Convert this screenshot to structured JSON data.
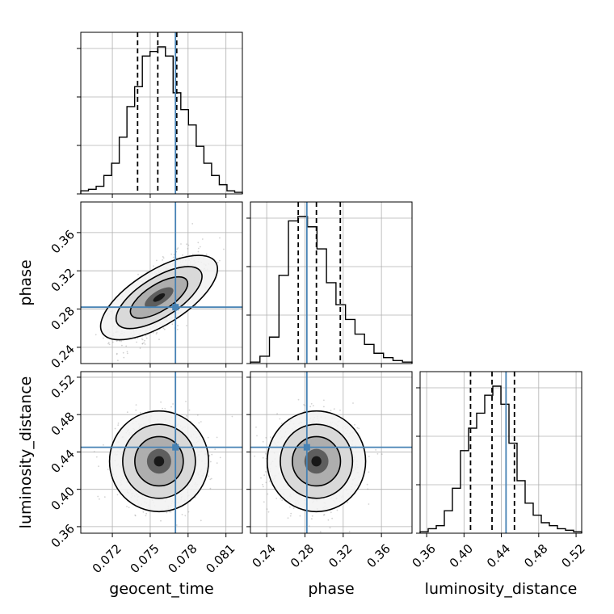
{
  "chart_data": {
    "type": "corner",
    "parameters": [
      "geocent_time",
      "phase",
      "luminosity_distance"
    ],
    "axis_labels": {
      "geocent_time": "geocent_time",
      "phase": "phase",
      "luminosity_distance": "luminosity_distance"
    },
    "ranges": {
      "geocent_time": [
        0.0695,
        0.0823
      ],
      "phase": [
        0.223,
        0.392
      ],
      "luminosity_distance": [
        0.353,
        0.526
      ]
    },
    "ticks": {
      "geocent_time": [
        0.072,
        0.075,
        0.078,
        0.081
      ],
      "phase": [
        0.24,
        0.28,
        0.32,
        0.36
      ],
      "luminosity_distance": [
        0.36,
        0.4,
        0.44,
        0.48,
        0.52
      ]
    },
    "tick_labels": {
      "geocent_time": [
        "0.072",
        "0.075",
        "0.078",
        "0.081"
      ],
      "phase": [
        "0.24",
        "0.28",
        "0.32",
        "0.36"
      ],
      "luminosity_distance": [
        "0.36",
        "0.40",
        "0.44",
        "0.48",
        "0.52"
      ]
    },
    "injection": {
      "geocent_time": 0.077,
      "phase": 0.282,
      "luminosity_distance": 0.445
    },
    "quantiles": {
      "geocent_time": [
        0.074,
        0.0756,
        0.0771
      ],
      "phase": [
        0.273,
        0.292,
        0.317
      ],
      "luminosity_distance": [
        0.407,
        0.43,
        0.454
      ]
    },
    "histograms": {
      "geocent_time": [
        2,
        3,
        5,
        12,
        20,
        37,
        57,
        70,
        90,
        93,
        96,
        90,
        66,
        55,
        45,
        31,
        20,
        12,
        6,
        2,
        1
      ],
      "phase": [
        1,
        5,
        18,
        60,
        97,
        100,
        93,
        78,
        55,
        40,
        30,
        20,
        13,
        7,
        4,
        2,
        1
      ],
      "luminosity_distance": [
        1,
        3,
        5,
        15,
        30,
        55,
        70,
        80,
        92,
        98,
        86,
        60,
        35,
        20,
        12,
        7,
        5,
        3,
        2,
        1
      ]
    },
    "hist_color": "#000000",
    "injection_color": "#4682b4",
    "grid": true
  }
}
